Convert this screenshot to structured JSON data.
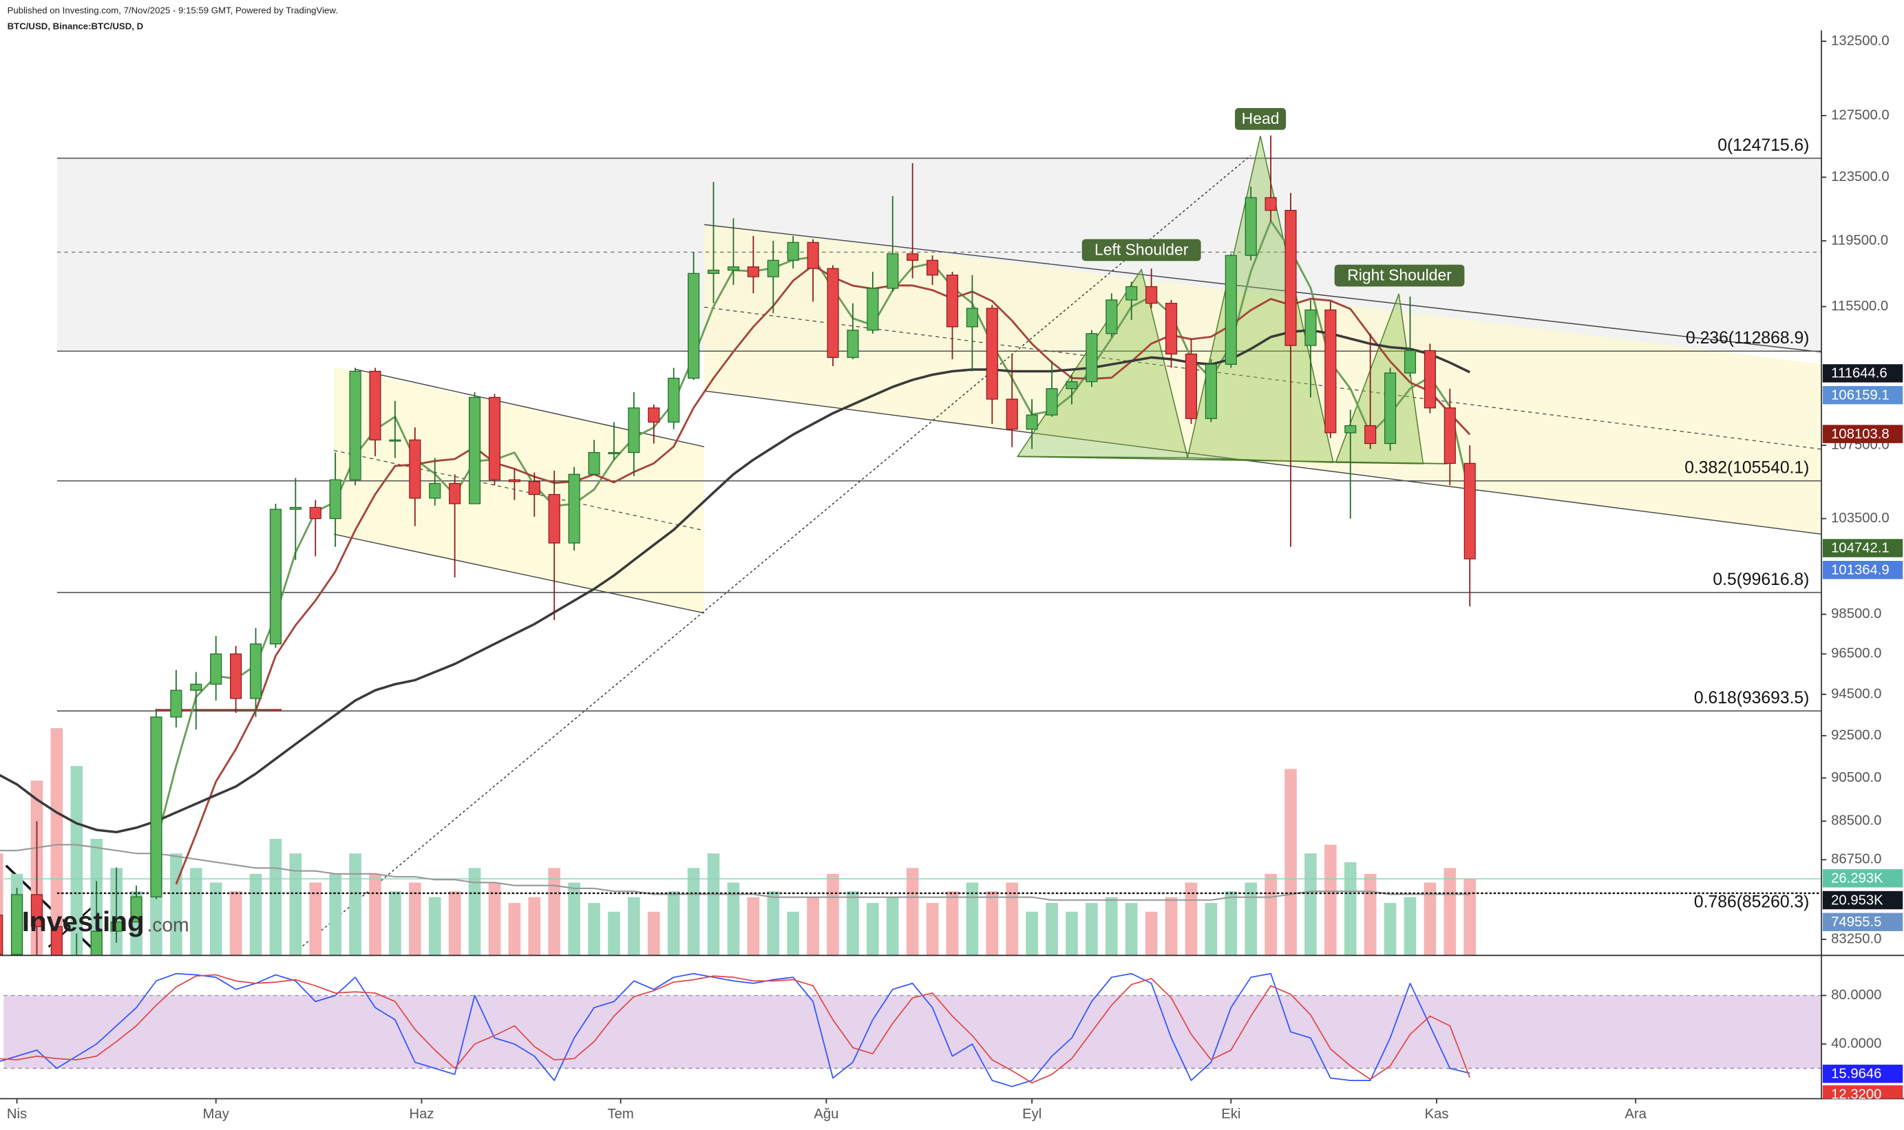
{
  "header": {
    "published": "Published on Investing.com, 7/Nov/2025 - 9:15:59 GMT, Powered by TradingView.",
    "symbol": "BTC/USD, Binance:BTC/USD, D"
  },
  "watermark": {
    "brand": "Investing",
    "suffix": ".com"
  },
  "annotations": {
    "head": "Head",
    "left": "Left Shoulder",
    "right": "Right Shoulder"
  },
  "chart_data": {
    "type": "candlestick",
    "log_scale": true,
    "grid": false,
    "x": [
      "2025-03-29",
      "2025-04-01",
      "2025-04-04",
      "2025-04-07",
      "2025-04-10",
      "2025-04-13",
      "2025-04-16",
      "2025-04-19",
      "2025-04-22",
      "2025-04-25",
      "2025-04-28",
      "2025-05-01",
      "2025-05-04",
      "2025-05-07",
      "2025-05-10",
      "2025-05-13",
      "2025-05-16",
      "2025-05-19",
      "2025-05-22",
      "2025-05-25",
      "2025-05-28",
      "2025-05-31",
      "2025-06-03",
      "2025-06-06",
      "2025-06-09",
      "2025-06-12",
      "2025-06-15",
      "2025-06-18",
      "2025-06-21",
      "2025-06-24",
      "2025-06-27",
      "2025-06-30",
      "2025-07-03",
      "2025-07-06",
      "2025-07-09",
      "2025-07-12",
      "2025-07-15",
      "2025-07-18",
      "2025-07-21",
      "2025-07-24",
      "2025-07-27",
      "2025-07-30",
      "2025-08-02",
      "2025-08-05",
      "2025-08-08",
      "2025-08-11",
      "2025-08-14",
      "2025-08-17",
      "2025-08-20",
      "2025-08-23",
      "2025-08-26",
      "2025-08-29",
      "2025-09-01",
      "2025-09-04",
      "2025-09-07",
      "2025-09-10",
      "2025-09-13",
      "2025-09-16",
      "2025-09-19",
      "2025-09-22",
      "2025-09-25",
      "2025-09-28",
      "2025-10-01",
      "2025-10-04",
      "2025-10-07",
      "2025-10-10",
      "2025-10-13",
      "2025-10-16",
      "2025-10-19",
      "2025-10-22",
      "2025-10-25",
      "2025-10-28",
      "2025-10-31",
      "2025-11-03",
      "2025-11-06"
    ],
    "xlim": [
      "2025-03-30",
      "2025-12-29"
    ],
    "xticks": [
      {
        "value": "2025-04-01",
        "label": "Nis"
      },
      {
        "value": "2025-05-01",
        "label": "May"
      },
      {
        "value": "2025-06-01",
        "label": "Haz"
      },
      {
        "value": "2025-07-01",
        "label": "Tem"
      },
      {
        "value": "2025-08-01",
        "label": "Ağu"
      },
      {
        "value": "2025-09-01",
        "label": "Eyl"
      },
      {
        "value": "2025-10-01",
        "label": "Eki"
      },
      {
        "value": "2025-11-01",
        "label": "Kas"
      },
      {
        "value": "2025-12-01",
        "label": "Ara"
      }
    ],
    "ylim": [
      82560,
      133250
    ],
    "yticks": [
      {
        "value": 132500,
        "label": "132500.0"
      },
      {
        "value": 127500,
        "label": "127500.0"
      },
      {
        "value": 123500,
        "label": "123500.0"
      },
      {
        "value": 119500,
        "label": "119500.0"
      },
      {
        "value": 115500,
        "label": "115500.0"
      },
      {
        "value": 107500,
        "label": "107500.0"
      },
      {
        "value": 103500,
        "label": "103500.0"
      },
      {
        "value": 98500,
        "label": "98500.0"
      },
      {
        "value": 96500,
        "label": "96500.0"
      },
      {
        "value": 94500,
        "label": "94500.0"
      },
      {
        "value": 92500,
        "label": "92500.0"
      },
      {
        "value": 90500,
        "label": "90500.0"
      },
      {
        "value": 88500,
        "label": "88500.0"
      },
      {
        "value": 86750,
        "label": "86750.0"
      },
      {
        "value": 83250,
        "label": "83250.0"
      }
    ],
    "up_color": "#5cb85c",
    "down_color": "#e8474a",
    "candles": [
      [
        84300,
        84600,
        81600,
        82600
      ],
      [
        82600,
        85500,
        82400,
        85200
      ],
      [
        85200,
        88500,
        81300,
        83800
      ],
      [
        83800,
        84000,
        74500,
        79200
      ],
      [
        79200,
        83500,
        78500,
        79600
      ],
      [
        79600,
        85800,
        79200,
        83600
      ],
      [
        83600,
        86400,
        83100,
        84000
      ],
      [
        84000,
        85600,
        84000,
        85100
      ],
      [
        85100,
        93800,
        85000,
        93400
      ],
      [
        93400,
        95700,
        92900,
        94700
      ],
      [
        94700,
        95600,
        92800,
        95000
      ],
      [
        95000,
        97400,
        94200,
        96500
      ],
      [
        96500,
        96900,
        93600,
        94300
      ],
      [
        94300,
        97800,
        93400,
        97000
      ],
      [
        97000,
        104300,
        96800,
        104000
      ],
      [
        104000,
        105700,
        101300,
        104100
      ],
      [
        104100,
        104500,
        101500,
        103500
      ],
      [
        103500,
        107100,
        102000,
        105600
      ],
      [
        105600,
        111900,
        105300,
        111700
      ],
      [
        111700,
        111900,
        106900,
        107800
      ],
      [
        107800,
        110000,
        106800,
        107800
      ],
      [
        107800,
        108500,
        103100,
        104600
      ],
      [
        104600,
        106800,
        104200,
        105400
      ],
      [
        105400,
        105900,
        100400,
        104300
      ],
      [
        104300,
        110500,
        104300,
        110200
      ],
      [
        110200,
        110400,
        105300,
        105600
      ],
      [
        105600,
        106200,
        104500,
        105500
      ],
      [
        105500,
        106000,
        103600,
        104800
      ],
      [
        104800,
        106100,
        98200,
        102200
      ],
      [
        102200,
        106300,
        101800,
        105900
      ],
      [
        105900,
        107800,
        105900,
        107100
      ],
      [
        107100,
        108800,
        106700,
        107100
      ],
      [
        107100,
        110500,
        105800,
        109600
      ],
      [
        109600,
        109800,
        107600,
        108800
      ],
      [
        108800,
        111900,
        108400,
        111300
      ],
      [
        111300,
        118800,
        111200,
        117500
      ],
      [
        117500,
        123200,
        115700,
        117700
      ],
      [
        117700,
        120900,
        116800,
        117900
      ],
      [
        117900,
        119800,
        116300,
        117300
      ],
      [
        117300,
        119500,
        115100,
        118300
      ],
      [
        118300,
        119800,
        117800,
        119400
      ],
      [
        119400,
        119600,
        115800,
        117800
      ],
      [
        117800,
        118000,
        112000,
        112500
      ],
      [
        112500,
        115700,
        112400,
        114100
      ],
      [
        114100,
        117600,
        113900,
        116600
      ],
      [
        116600,
        122300,
        116400,
        118700
      ],
      [
        118700,
        124400,
        117200,
        118300
      ],
      [
        118300,
        118600,
        116800,
        117400
      ],
      [
        117400,
        117600,
        112400,
        114300
      ],
      [
        114300,
        117400,
        111700,
        115400
      ],
      [
        115400,
        115600,
        108700,
        110100
      ],
      [
        110100,
        112700,
        107400,
        108400
      ],
      [
        108400,
        110100,
        107300,
        109200
      ],
      [
        109200,
        112300,
        109100,
        110700
      ],
      [
        110700,
        111500,
        109800,
        111100
      ],
      [
        111100,
        114100,
        110800,
        113900
      ],
      [
        113900,
        116300,
        113700,
        115900
      ],
      [
        115900,
        117000,
        114700,
        116700
      ],
      [
        116700,
        117800,
        115400,
        115700
      ],
      [
        115700,
        115900,
        111900,
        112700
      ],
      [
        112700,
        113600,
        108700,
        109000
      ],
      [
        109000,
        112400,
        108800,
        112100
      ],
      [
        112100,
        118700,
        111900,
        118600
      ],
      [
        118600,
        122900,
        118300,
        122200
      ],
      [
        122200,
        126200,
        120700,
        121400
      ],
      [
        121400,
        122500,
        102000,
        113200
      ],
      [
        113200,
        115900,
        110200,
        115300
      ],
      [
        115300,
        115800,
        107900,
        108200
      ],
      [
        108200,
        109500,
        103500,
        108600
      ],
      [
        108600,
        113900,
        107300,
        107600
      ],
      [
        107600,
        111900,
        107200,
        111600
      ],
      [
        111600,
        116100,
        111400,
        112900
      ],
      [
        112900,
        113300,
        109300,
        109600
      ],
      [
        109600,
        110700,
        105300,
        106500
      ],
      [
        106500,
        107500,
        98900,
        101364.9
      ]
    ],
    "series": [
      {
        "color": "#6b9e5a",
        "values": [
          null,
          null,
          null,
          null,
          null,
          null,
          null,
          null,
          87500,
          91070,
          94370,
          95400,
          95270,
          95930,
          98430,
          101700,
          103870,
          104400,
          106930,
          108370,
          109100,
          106730,
          105930,
          104770,
          106630,
          106700,
          107100,
          105300,
          104170,
          104300,
          105070,
          106700,
          107930,
          108500,
          109900,
          112530,
          115500,
          117700,
          117630,
          117830,
          118330,
          118500,
          116570,
          114800,
          114400,
          116470,
          117870,
          118130,
          116670,
          115700,
          113270,
          111300,
          109230,
          109430,
          110330,
          111900,
          113630,
          115500,
          116100,
          115030,
          112470,
          111270,
          113230,
          117630,
          120730,
          118930,
          116630,
          112230,
          110700,
          108130,
          109270,
          110700,
          111370,
          109670,
          104742.1
        ]
      },
      {
        "color": "#a5443a",
        "values": [
          null,
          null,
          null,
          null,
          null,
          null,
          null,
          null,
          null,
          85660,
          87910,
          90330,
          91860,
          93710,
          96410,
          97940,
          99200,
          100710,
          102890,
          104810,
          106360,
          106440,
          106630,
          106740,
          107400,
          106530,
          106200,
          105770,
          105430,
          105500,
          105900,
          105460,
          106030,
          106500,
          107430,
          109610,
          111300,
          112840,
          114300,
          115540,
          117060,
          117990,
          117270,
          116760,
          116570,
          116770,
          116770,
          116490,
          115990,
          116400,
          115830,
          114660,
          113300,
          112210,
          111310,
          111260,
          111330,
          112270,
          113310,
          113810,
          113570,
          113710,
          114390,
          115290,
          115960,
          115600,
          115970,
          115860,
          115360,
          113790,
          112270,
          111060,
          110540,
          109290,
          108103.8
        ]
      },
      {
        "color": "#3a3a3a",
        "values": [
          90700,
          90200,
          89500,
          88900,
          88400,
          88100,
          88000,
          88200,
          88500,
          88900,
          89300,
          89700,
          90100,
          90700,
          91400,
          92100,
          92800,
          93500,
          94200,
          94700,
          95000,
          95200,
          95600,
          96000,
          96500,
          97000,
          97500,
          98000,
          98600,
          99200,
          99800,
          100500,
          101300,
          102100,
          102900,
          103900,
          104900,
          105900,
          106700,
          107400,
          108100,
          108700,
          109300,
          109800,
          110300,
          110800,
          111200,
          111500,
          111700,
          111800,
          111800,
          111700,
          111700,
          111700,
          111800,
          111900,
          112100,
          112300,
          112500,
          112400,
          112200,
          112100,
          112400,
          113000,
          113700,
          114000,
          114100,
          113900,
          113600,
          113300,
          113100,
          113000,
          112700,
          112200,
          111644.6
        ]
      }
    ],
    "price_labels": [
      {
        "value": 106159.1
      },
      {
        "value": 74955.5
      }
    ],
    "fib_levels": [
      {
        "value": 124715.6,
        "label": "0(124715.6)"
      },
      {
        "value": 112868.9,
        "label": "0.236(112868.9)"
      },
      {
        "value": 105540.1,
        "label": "0.382(105540.1)"
      },
      {
        "value": 99616.8,
        "label": "0.5(99616.8)"
      },
      {
        "value": 93693.5,
        "label": "0.618(93693.5)"
      },
      {
        "value": 85260.3,
        "label": "0.786(85260.3)"
      }
    ],
    "dashed_level": 118800,
    "volume": {
      "vlim": [
        0,
        80
      ],
      "values": [
        35,
        28,
        60,
        78,
        65,
        40,
        30,
        22,
        40,
        35,
        30,
        25,
        22,
        28,
        40,
        35,
        25,
        28,
        35,
        28,
        22,
        25,
        20,
        22,
        30,
        25,
        18,
        20,
        30,
        25,
        18,
        15,
        20,
        15,
        22,
        30,
        35,
        25,
        20,
        22,
        15,
        20,
        28,
        22,
        18,
        20,
        30,
        18,
        22,
        25,
        22,
        25,
        15,
        18,
        15,
        18,
        20,
        18,
        15,
        20,
        25,
        18,
        22,
        25,
        28,
        64,
        35,
        38,
        32,
        28,
        18,
        20,
        25,
        30,
        26.293
      ],
      "ma": [
        36,
        36,
        37,
        38,
        38,
        37,
        36,
        35,
        35,
        34,
        33,
        32,
        31,
        30,
        30,
        29,
        29,
        28,
        28,
        28,
        27,
        27,
        26,
        26,
        25,
        25,
        24,
        24,
        24,
        23,
        23,
        22,
        22,
        21,
        21,
        21,
        21,
        21,
        21,
        20,
        20,
        20,
        20,
        20,
        20,
        20,
        20,
        20,
        20,
        20,
        20,
        20,
        20,
        19,
        19,
        19,
        19,
        19,
        19,
        19,
        19,
        19,
        20,
        20,
        20,
        21,
        22,
        22,
        22,
        22,
        21,
        21,
        21,
        21,
        20.953
      ],
      "last_label": "26.293K",
      "ma_last_label": "20.953K",
      "up_color": "#9fd9c0",
      "down_color": "#f5b3b3",
      "ma_color": "#999999"
    }
  },
  "stochastic": {
    "type": "line",
    "ylim": [
      -5,
      112
    ],
    "yticks": [
      {
        "value": 80,
        "label": "80.0000"
      },
      {
        "value": 40,
        "label": "40.0000"
      }
    ],
    "bands": [
      20,
      80
    ],
    "series": [
      {
        "color": "#3355ff",
        "values": [
          25,
          30,
          35,
          20,
          30,
          40,
          55,
          70,
          92,
          98,
          97,
          95,
          85,
          90,
          97,
          92,
          75,
          80,
          95,
          70,
          60,
          25,
          20,
          15,
          80,
          45,
          40,
          30,
          10,
          45,
          70,
          75,
          92,
          85,
          95,
          98,
          95,
          92,
          90,
          93,
          95,
          75,
          12,
          25,
          60,
          85,
          90,
          70,
          30,
          40,
          10,
          5,
          10,
          30,
          45,
          75,
          95,
          98,
          90,
          45,
          10,
          25,
          70,
          95,
          98,
          50,
          45,
          12,
          10,
          10,
          45,
          90,
          55,
          20,
          15.9646
        ]
      },
      {
        "color": "#e04848",
        "values": [
          28,
          27,
          30,
          28,
          27,
          30,
          42,
          55,
          72,
          87,
          96,
          97,
          92,
          90,
          91,
          93,
          88,
          82,
          83,
          82,
          75,
          52,
          35,
          20,
          40,
          47,
          55,
          38,
          27,
          28,
          42,
          63,
          79,
          84,
          91,
          93,
          96,
          95,
          92,
          92,
          93,
          88,
          60,
          37,
          32,
          57,
          78,
          82,
          63,
          47,
          27,
          18,
          8,
          15,
          28,
          50,
          72,
          89,
          94,
          78,
          48,
          27,
          35,
          63,
          88,
          81,
          64,
          36,
          22,
          11,
          22,
          48,
          63,
          55,
          12.32
        ],
        "last_label": "12.3200"
      }
    ]
  }
}
